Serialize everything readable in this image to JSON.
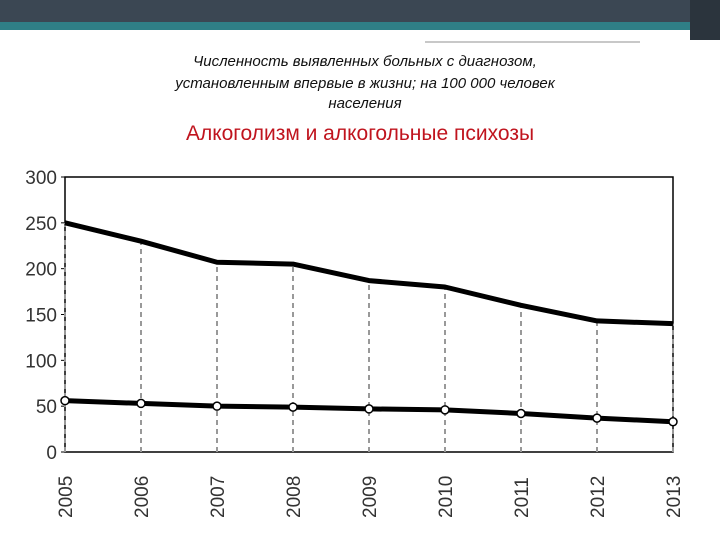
{
  "chart_data": {
    "type": "line",
    "title": [
      "Численность выявленных больных с диагнозом,",
      "установленным впервые в жизни; на 100 000 человек",
      "населения"
    ],
    "subtitle": "Алкоголизм и алкогольные психозы",
    "categories": [
      "2005",
      "2006",
      "2007",
      "2008",
      "2009",
      "2010",
      "2011",
      "2012",
      "2013"
    ],
    "series": [
      {
        "color": "#000000",
        "marker": false,
        "values": [
          250,
          230,
          207,
          205,
          187,
          180,
          160,
          143,
          140
        ]
      },
      {
        "color": "#000000",
        "marker": true,
        "values": [
          56,
          53,
          50,
          49,
          47,
          46,
          42,
          37,
          33
        ]
      }
    ],
    "ylim": [
      0,
      300
    ],
    "yticks": [
      0,
      50,
      100,
      150,
      200,
      250,
      300
    ],
    "drop_lines": true
  }
}
